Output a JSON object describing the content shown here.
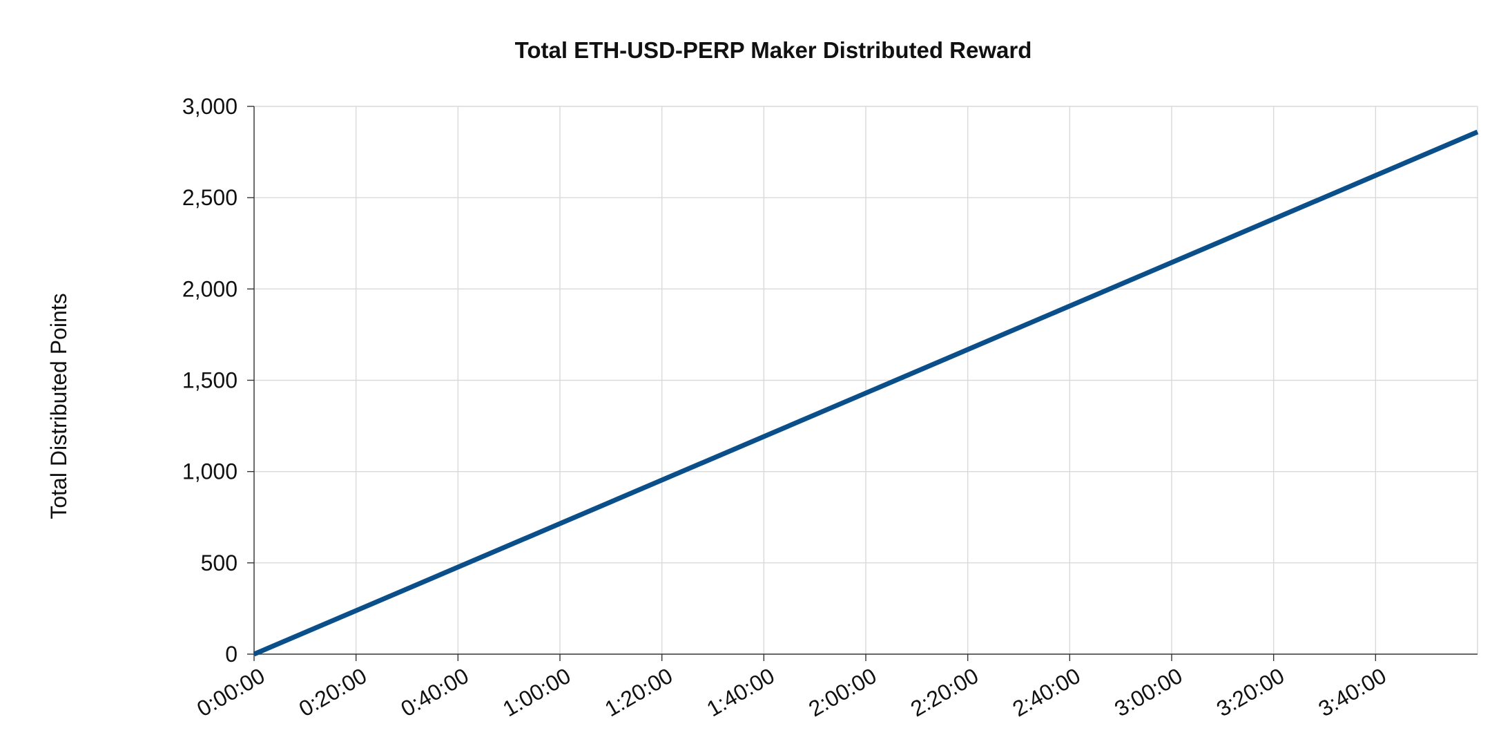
{
  "chart_data": {
    "type": "line",
    "title": "Total ETH-USD-PERP Maker Distributed Reward",
    "xlabel": "",
    "ylabel": "Total Distributed Points",
    "x_ticks": [
      "0:00:00",
      "0:20:00",
      "0:40:00",
      "1:00:00",
      "1:20:00",
      "1:40:00",
      "2:00:00",
      "2:20:00",
      "2:40:00",
      "3:00:00",
      "3:20:00",
      "3:40:00"
    ],
    "x_tick_minutes": [
      0,
      20,
      40,
      60,
      80,
      100,
      120,
      140,
      160,
      180,
      200,
      220
    ],
    "xlim_minutes": [
      0,
      240
    ],
    "y_ticks": [
      "0",
      "500",
      "1,000",
      "1,500",
      "2,000",
      "2,500",
      "3,000"
    ],
    "y_tick_values": [
      0,
      500,
      1000,
      1500,
      2000,
      2500,
      3000
    ],
    "ylim": [
      0,
      3000
    ],
    "grid": true,
    "series": [
      {
        "x_minutes": [
          0,
          240
        ],
        "values": [
          0,
          2860
        ],
        "color": "#0b4f8a"
      }
    ]
  }
}
